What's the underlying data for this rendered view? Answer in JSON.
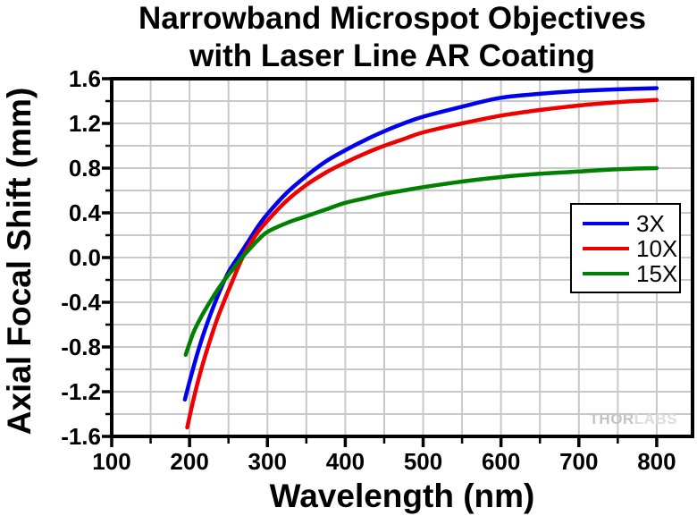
{
  "figure": {
    "title_line1": "Narrowband Microspot Objectives",
    "title_line2": "with Laser Line AR Coating"
  },
  "watermark": {
    "thor": "THOR",
    "labs": "LABS"
  },
  "chart_data": {
    "type": "line",
    "title": "Narrowband Microspot Objectives with Laser Line AR Coating",
    "xlabel": "Wavelength (nm)",
    "ylabel": "Axial Focal Shift (mm)",
    "xlim": [
      100,
      846
    ],
    "ylim": [
      -1.6,
      1.6
    ],
    "x_major_ticks": [
      100,
      200,
      300,
      400,
      500,
      600,
      700,
      800
    ],
    "x_minor_ticks": [
      150,
      250,
      350,
      450,
      550,
      650,
      750
    ],
    "x_grid_step": 50,
    "y_major_ticks": [
      1.6,
      1.2,
      0.8,
      0.4,
      0.0,
      -0.4,
      -0.8,
      -1.2,
      -1.6
    ],
    "y_tick_labels": [
      "1.6",
      "1.2",
      "0.8",
      "0.4",
      "0.0",
      "-0.4",
      "-0.8",
      "-1.2",
      "-1.6"
    ],
    "y_minor_ticks": [
      1.4,
      1.0,
      0.6,
      0.2,
      -0.2,
      -0.6,
      -1.0,
      -1.4
    ],
    "y_grid_step": 0.2,
    "grid": true,
    "grid_color": "#c8c8c8",
    "frame_color": "#000000",
    "legend_position": "middle-right",
    "series": [
      {
        "name": "3X",
        "color": "#0000ee",
        "points": [
          [
            194,
            -1.27
          ],
          [
            200,
            -1.11
          ],
          [
            210,
            -0.86
          ],
          [
            220,
            -0.64
          ],
          [
            230,
            -0.45
          ],
          [
            240,
            -0.28
          ],
          [
            250,
            -0.13
          ],
          [
            262,
            0.0
          ],
          [
            275,
            0.14
          ],
          [
            287,
            0.27
          ],
          [
            300,
            0.39
          ],
          [
            325,
            0.58
          ],
          [
            350,
            0.73
          ],
          [
            375,
            0.86
          ],
          [
            400,
            0.96
          ],
          [
            425,
            1.05
          ],
          [
            450,
            1.13
          ],
          [
            475,
            1.2
          ],
          [
            500,
            1.26
          ],
          [
            550,
            1.35
          ],
          [
            600,
            1.43
          ],
          [
            650,
            1.465
          ],
          [
            700,
            1.49
          ],
          [
            750,
            1.505
          ],
          [
            800,
            1.515
          ]
        ]
      },
      {
        "name": "10X",
        "color": "#ee0000",
        "points": [
          [
            197,
            -1.52
          ],
          [
            205,
            -1.27
          ],
          [
            215,
            -1.0
          ],
          [
            225,
            -0.77
          ],
          [
            235,
            -0.56
          ],
          [
            245,
            -0.38
          ],
          [
            255,
            -0.21
          ],
          [
            266,
            -0.03
          ],
          [
            275,
            0.09
          ],
          [
            287,
            0.22
          ],
          [
            300,
            0.33
          ],
          [
            325,
            0.51
          ],
          [
            350,
            0.65
          ],
          [
            375,
            0.76
          ],
          [
            400,
            0.85
          ],
          [
            425,
            0.93
          ],
          [
            450,
            1.0
          ],
          [
            475,
            1.06
          ],
          [
            500,
            1.12
          ],
          [
            550,
            1.2
          ],
          [
            600,
            1.27
          ],
          [
            650,
            1.32
          ],
          [
            700,
            1.36
          ],
          [
            750,
            1.39
          ],
          [
            800,
            1.41
          ]
        ]
      },
      {
        "name": "15X",
        "color": "#008000",
        "points": [
          [
            195,
            -0.87
          ],
          [
            205,
            -0.67
          ],
          [
            215,
            -0.53
          ],
          [
            225,
            -0.41
          ],
          [
            235,
            -0.3
          ],
          [
            245,
            -0.2
          ],
          [
            255,
            -0.11
          ],
          [
            266,
            -0.01
          ],
          [
            275,
            0.06
          ],
          [
            287,
            0.15
          ],
          [
            300,
            0.23
          ],
          [
            325,
            0.31
          ],
          [
            350,
            0.37
          ],
          [
            375,
            0.43
          ],
          [
            400,
            0.49
          ],
          [
            425,
            0.53
          ],
          [
            450,
            0.57
          ],
          [
            475,
            0.6
          ],
          [
            500,
            0.63
          ],
          [
            550,
            0.68
          ],
          [
            600,
            0.72
          ],
          [
            650,
            0.75
          ],
          [
            700,
            0.77
          ],
          [
            750,
            0.79
          ],
          [
            800,
            0.8
          ]
        ]
      }
    ]
  }
}
